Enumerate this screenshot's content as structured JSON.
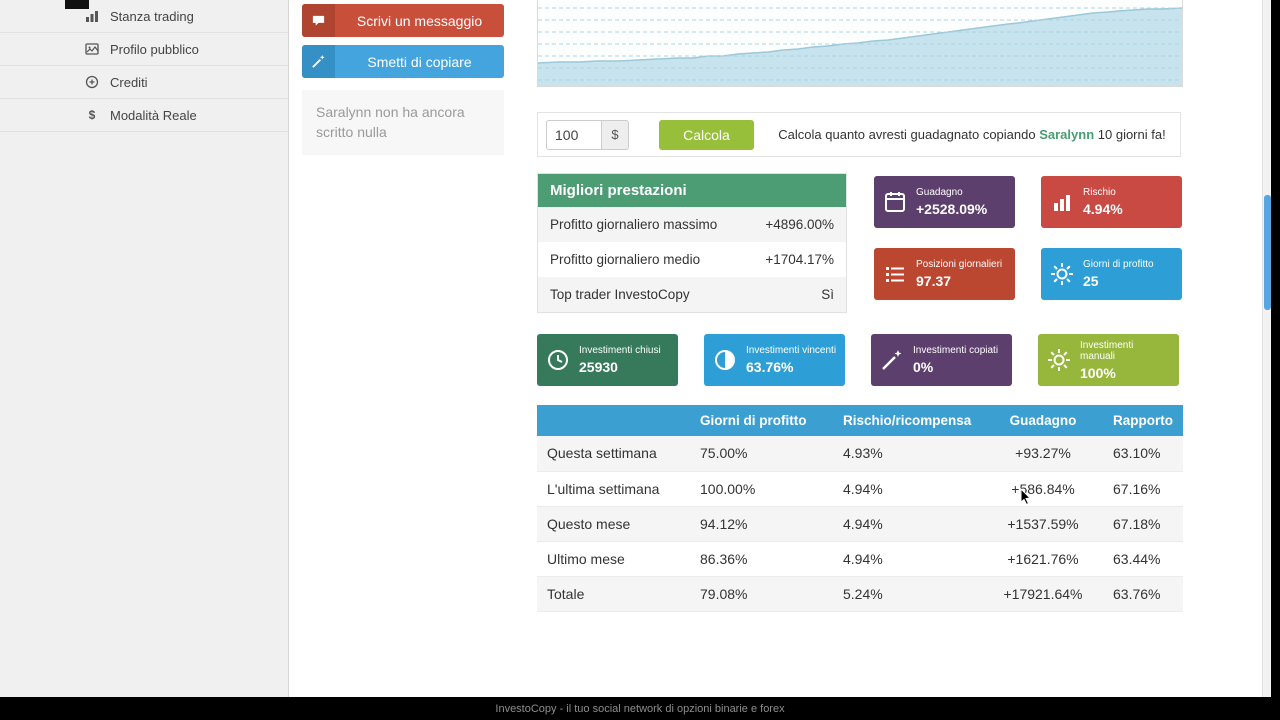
{
  "colors": {
    "green_header": "#4c9d73",
    "calc_button": "#97bf3a",
    "table_header": "#3ba0d1",
    "message_button": "#c8503a",
    "copy_button": "#44a5de",
    "scroll_thumb": "#55a6e1"
  },
  "sidebar": {
    "items": [
      {
        "label": "Stanza trading",
        "icon": "chart-icon"
      },
      {
        "label": "Profilo pubblico",
        "icon": "image-icon"
      },
      {
        "label": "Crediti",
        "icon": "plus-icon"
      },
      {
        "label": "Modalità Reale",
        "icon": "dollar-icon"
      }
    ]
  },
  "actions": {
    "message_button": "Scrivi un messaggio",
    "stop_copy_button": "Smetti di copiare",
    "note": "Saralynn non ha ancora scritto nulla"
  },
  "calculator": {
    "amount": "100",
    "currency": "$",
    "button_label": "Calcola",
    "text_before": "Calcola quanto avresti guadagnato copiando",
    "trader_name": "Saralynn",
    "text_after": "10 giorni fa!"
  },
  "best_performance": {
    "title": "Migliori prestazioni",
    "rows": [
      {
        "label": "Profitto giornaliero massimo",
        "value": "+4896.00%"
      },
      {
        "label": "Profitto giornaliero medio",
        "value": "+1704.17%"
      },
      {
        "label": "Top trader InvestoCopy",
        "value": "Sì"
      }
    ]
  },
  "stat_tiles": [
    {
      "label": "Guadagno",
      "value": "+2528.09%",
      "color": "#5d3f6d",
      "icon": "calendar-icon"
    },
    {
      "label": "Rischio",
      "value": "4.94%",
      "color": "#c94a42",
      "icon": "bar-chart-icon"
    },
    {
      "label": "Posizioni giornalieri",
      "value": "97.37",
      "color": "#bc4731",
      "icon": "list-icon"
    },
    {
      "label": "Giorni di profitto",
      "value": "25",
      "color": "#2e9fd6",
      "icon": "gear-icon"
    }
  ],
  "investment_tiles": [
    {
      "label": "Investimenti chiusi",
      "value": "25930",
      "color": "#36795b",
      "icon": "clock-icon"
    },
    {
      "label": "Investimenti vincenti",
      "value": "63.76%",
      "color": "#2e9fd6",
      "icon": "half-circle-icon"
    },
    {
      "label": "Investimenti copiati",
      "value": "0%",
      "color": "#5d3f6d",
      "icon": "wand-icon"
    },
    {
      "label": "Investimenti manuali",
      "value": "100%",
      "color": "#97b73c",
      "icon": "gear-icon"
    }
  ],
  "stats_table": {
    "headers": [
      "",
      "Giorni di profitto",
      "Rischio/ricompensa",
      "Guadagno",
      "Rapporto"
    ],
    "rows": [
      [
        "Questa settimana",
        "75.00%",
        "4.93%",
        "+93.27%",
        "63.10%"
      ],
      [
        "L'ultima settimana",
        "100.00%",
        "4.94%",
        "+586.84%",
        "67.16%"
      ],
      [
        "Questo mese",
        "94.12%",
        "4.94%",
        "+1537.59%",
        "67.18%"
      ],
      [
        "Ultimo mese",
        "86.36%",
        "4.94%",
        "+1621.76%",
        "63.44%"
      ],
      [
        "Totale",
        "79.08%",
        "5.24%",
        "+17921.64%",
        "63.76%"
      ]
    ]
  },
  "footer": {
    "text": "InvestoCopy - il tuo social network di opzioni binarie e forex"
  },
  "chart_data": {
    "type": "area",
    "title": "",
    "xlabel": "",
    "ylabel": "",
    "grid": "horizontal-dashed",
    "fill_color": "#c7e3ee",
    "line_color": "#9cc8da",
    "points": [
      [
        0,
        63
      ],
      [
        20,
        62
      ],
      [
        40,
        62
      ],
      [
        60,
        61
      ],
      [
        80,
        61
      ],
      [
        100,
        60
      ],
      [
        120,
        59
      ],
      [
        140,
        58
      ],
      [
        155,
        58
      ],
      [
        170,
        56
      ],
      [
        185,
        56
      ],
      [
        200,
        54
      ],
      [
        215,
        53
      ],
      [
        230,
        52
      ],
      [
        245,
        50
      ],
      [
        260,
        49
      ],
      [
        275,
        47
      ],
      [
        290,
        46
      ],
      [
        305,
        44
      ],
      [
        320,
        43
      ],
      [
        335,
        41
      ],
      [
        350,
        40
      ],
      [
        365,
        38
      ],
      [
        380,
        36
      ],
      [
        395,
        34
      ],
      [
        410,
        32
      ],
      [
        425,
        30
      ],
      [
        440,
        28
      ],
      [
        455,
        26
      ],
      [
        470,
        24
      ],
      [
        480,
        23
      ],
      [
        495,
        21
      ],
      [
        510,
        19
      ],
      [
        525,
        17
      ],
      [
        540,
        15
      ],
      [
        555,
        13
      ],
      [
        570,
        12
      ],
      [
        580,
        11
      ],
      [
        595,
        10
      ],
      [
        610,
        9
      ],
      [
        625,
        9
      ],
      [
        644,
        8
      ]
    ]
  }
}
